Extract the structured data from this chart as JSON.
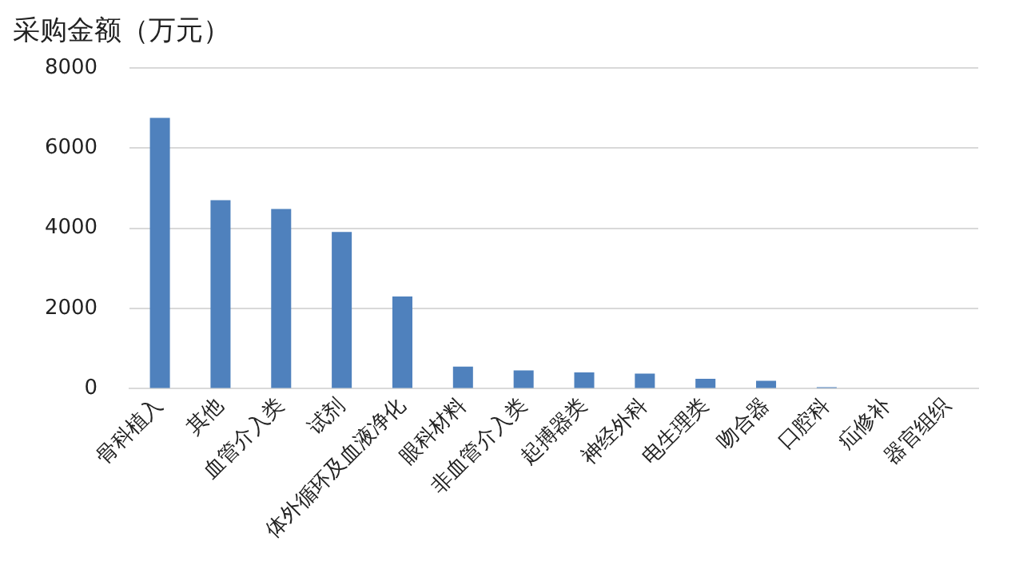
{
  "chart_data": {
    "type": "bar",
    "title": "采购金额（万元）",
    "categories": [
      "骨科植入",
      "其他",
      "血管介入类",
      "试剂",
      "体外循环及血液净化",
      "眼科材料",
      "非血管介入类",
      "起搏器类",
      "神经外科",
      "电生理类",
      "吻合器",
      "口腔科",
      "疝修补",
      "器官组织"
    ],
    "values": [
      6750,
      4700,
      4480,
      3910,
      2300,
      550,
      460,
      410,
      380,
      250,
      200,
      40,
      0,
      0
    ],
    "color": "#4f81bd",
    "ylim": [
      0,
      8000
    ],
    "yticks": [
      0,
      2000,
      4000,
      6000,
      8000
    ],
    "grid": "y",
    "legend": false
  }
}
